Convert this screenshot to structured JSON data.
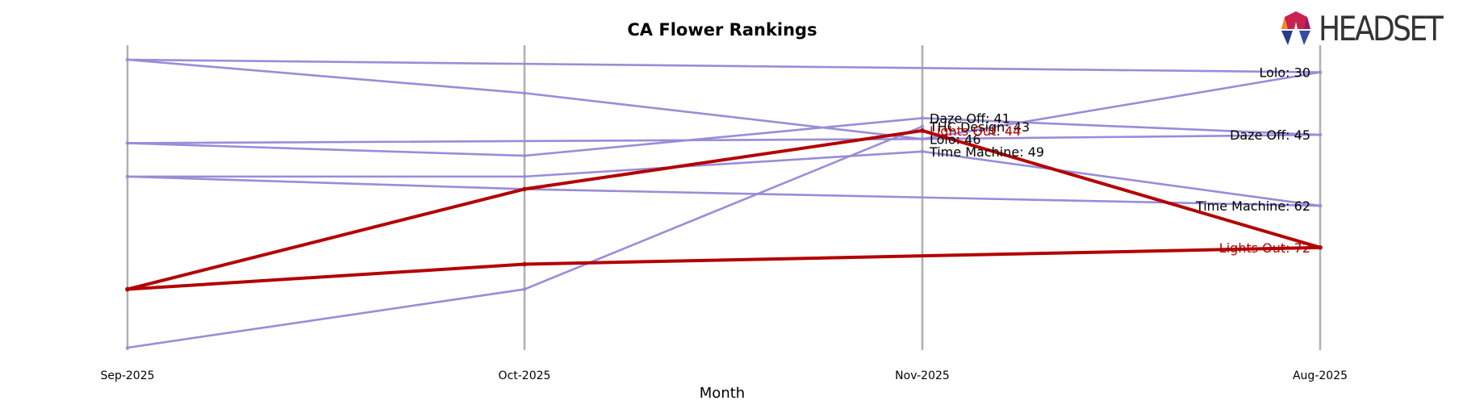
{
  "logo": {
    "brand": "HEADSET"
  },
  "colors": {
    "highlight": "#b30000",
    "other": "#9a8cd8",
    "axis_line": "#b0b0b0",
    "text": "#000000"
  },
  "chart_data": {
    "type": "line",
    "title": "CA Flower Rankings",
    "xlabel": "Month",
    "ylabel": "",
    "categories": [
      "Sep-2025",
      "Oct-2025",
      "Nov-2025",
      "Aug-2025"
    ],
    "rank_range": [
      24,
      96
    ],
    "grid": false,
    "series": [
      {
        "key": "lolo",
        "highlight": false,
        "values": [
          null,
          null,
          46,
          30
        ],
        "end_labels": [
          null,
          null,
          "Lolo: 46",
          "Lolo: 30"
        ]
      },
      {
        "key": "daze-off",
        "highlight": false,
        "values": [
          null,
          null,
          41,
          45
        ],
        "end_labels": [
          null,
          null,
          "Daze Off: 41",
          "Daze Off: 45"
        ]
      },
      {
        "key": "thc-design",
        "highlight": false,
        "values": [
          null,
          null,
          43,
          null
        ],
        "end_labels": [
          null,
          null,
          "THC Design: 43",
          null
        ]
      },
      {
        "key": "time-machine",
        "highlight": false,
        "values": [
          null,
          null,
          49,
          62
        ],
        "end_labels": [
          null,
          null,
          "Time Machine: 49",
          "Time Machine: 62"
        ]
      },
      {
        "key": "lights-out",
        "highlight": true,
        "values": [
          null,
          null,
          44,
          72
        ],
        "end_labels": [
          null,
          null,
          "Lights Out: 44",
          "Lights Out: 72"
        ]
      },
      {
        "key": "other-1",
        "highlight": false,
        "values": [
          27,
          null,
          null,
          30
        ],
        "end_labels": [
          null,
          null,
          null,
          null
        ]
      },
      {
        "key": "other-2",
        "highlight": false,
        "values": [
          27,
          35,
          46,
          null
        ],
        "end_labels": [
          null,
          null,
          null,
          null
        ]
      },
      {
        "key": "other-3",
        "highlight": false,
        "values": [
          47,
          null,
          46,
          45
        ],
        "end_labels": [
          null,
          null,
          null,
          null
        ]
      },
      {
        "key": "other-4",
        "highlight": false,
        "values": [
          47,
          50,
          41,
          null
        ],
        "end_labels": [
          null,
          null,
          null,
          null
        ]
      },
      {
        "key": "other-5",
        "highlight": false,
        "values": [
          55,
          55,
          49,
          null
        ],
        "end_labels": [
          null,
          null,
          null,
          null
        ]
      },
      {
        "key": "other-6",
        "highlight": false,
        "values": [
          55,
          58,
          null,
          62
        ],
        "end_labels": [
          null,
          null,
          null,
          null
        ]
      },
      {
        "key": "other-7",
        "highlight": false,
        "values": [
          96,
          82,
          43,
          null
        ],
        "end_labels": [
          null,
          null,
          null,
          null
        ]
      },
      {
        "key": "other-8",
        "highlight": true,
        "values": [
          82,
          58,
          44,
          null
        ],
        "end_labels": [
          null,
          null,
          null,
          null
        ]
      },
      {
        "key": "other-9",
        "highlight": true,
        "values": [
          82,
          76,
          null,
          72
        ],
        "end_labels": [
          null,
          null,
          null,
          null
        ]
      }
    ]
  }
}
